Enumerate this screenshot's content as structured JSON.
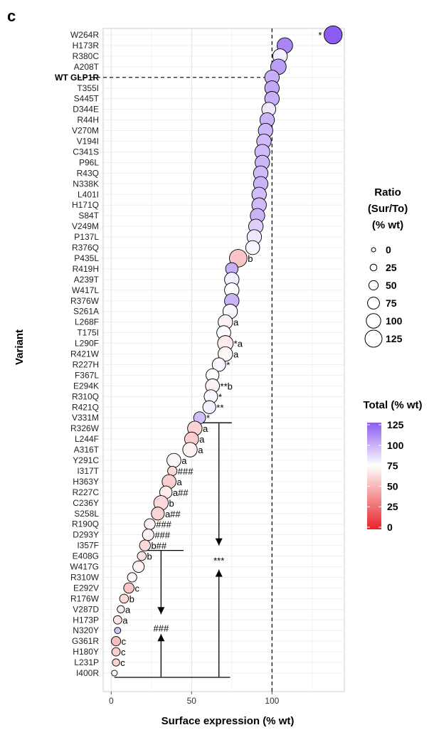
{
  "panel_label": "c",
  "chart_data": {
    "type": "scatter",
    "xlabel": "Surface expression (% wt)",
    "ylabel": "Variant",
    "xlim": [
      -5,
      145
    ],
    "x_ticks": [
      0,
      50,
      100
    ],
    "reference_x": 100,
    "reference_variant": "WT GLP1R",
    "grid": true,
    "legend_position": "right",
    "size_legend": {
      "title": [
        "Ratio",
        "(Sur/To)",
        "(% wt)"
      ],
      "values": [
        0,
        25,
        50,
        75,
        100,
        125
      ]
    },
    "color_legend": {
      "title": "Total (% wt)",
      "ticks": [
        125,
        100,
        75,
        50,
        25,
        0
      ],
      "low_color": "#e8232a",
      "mid_color": "#ffffff",
      "high_color": "#8c5cf0",
      "midpoint": 75
    },
    "points": [
      {
        "variant": "W264R",
        "x": 138,
        "ratio": 135,
        "total": 130,
        "label": "*",
        "label_side": "left"
      },
      {
        "variant": "H173R",
        "x": 108,
        "ratio": 110,
        "total": 112
      },
      {
        "variant": "R380C",
        "x": 105,
        "ratio": 100,
        "total": 80
      },
      {
        "variant": "A208T",
        "x": 104,
        "ratio": 110,
        "total": 105
      },
      {
        "variant": "WT GLP1R",
        "x": 100,
        "ratio": 100,
        "total": 100
      },
      {
        "variant": "T355I",
        "x": 100,
        "ratio": 100,
        "total": 102
      },
      {
        "variant": "S445T",
        "x": 100,
        "ratio": 100,
        "total": 100
      },
      {
        "variant": "D344E",
        "x": 98,
        "ratio": 95,
        "total": 82
      },
      {
        "variant": "R44H",
        "x": 97,
        "ratio": 100,
        "total": 98
      },
      {
        "variant": "V270M",
        "x": 96,
        "ratio": 100,
        "total": 97
      },
      {
        "variant": "V194I",
        "x": 95,
        "ratio": 100,
        "total": 96
      },
      {
        "variant": "C341S",
        "x": 94,
        "ratio": 105,
        "total": 96
      },
      {
        "variant": "P96L",
        "x": 94,
        "ratio": 100,
        "total": 97
      },
      {
        "variant": "R43Q",
        "x": 93,
        "ratio": 100,
        "total": 96
      },
      {
        "variant": "N338K",
        "x": 93,
        "ratio": 100,
        "total": 98
      },
      {
        "variant": "L401I",
        "x": 92,
        "ratio": 100,
        "total": 95
      },
      {
        "variant": "H171Q",
        "x": 92,
        "ratio": 100,
        "total": 96
      },
      {
        "variant": "S84T",
        "x": 91,
        "ratio": 100,
        "total": 98
      },
      {
        "variant": "V249M",
        "x": 90,
        "ratio": 100,
        "total": 90
      },
      {
        "variant": "P137L",
        "x": 89,
        "ratio": 100,
        "total": 82
      },
      {
        "variant": "R376Q",
        "x": 88,
        "ratio": 95,
        "total": 78
      },
      {
        "variant": "P435L",
        "x": 79,
        "ratio": 130,
        "total": 55,
        "label": "b"
      },
      {
        "variant": "R419H",
        "x": 75,
        "ratio": 80,
        "total": 100
      },
      {
        "variant": "A239T",
        "x": 75,
        "ratio": 100,
        "total": 80
      },
      {
        "variant": "W417L",
        "x": 75,
        "ratio": 100,
        "total": 76
      },
      {
        "variant": "R376W",
        "x": 75,
        "ratio": 100,
        "total": 98
      },
      {
        "variant": "S261A",
        "x": 74,
        "ratio": 100,
        "total": 78
      },
      {
        "variant": "L268F",
        "x": 71,
        "ratio": 100,
        "total": 70,
        "label": "a"
      },
      {
        "variant": "T175I",
        "x": 70,
        "ratio": 95,
        "total": 76
      },
      {
        "variant": "L290F",
        "x": 71,
        "ratio": 110,
        "total": 68,
        "label": "*a"
      },
      {
        "variant": "R421W",
        "x": 71,
        "ratio": 100,
        "total": 72,
        "label": "a"
      },
      {
        "variant": "R227H",
        "x": 67,
        "ratio": 90,
        "total": 78,
        "label": "*"
      },
      {
        "variant": "F367L",
        "x": 63,
        "ratio": 85,
        "total": 76
      },
      {
        "variant": "E294K",
        "x": 63,
        "ratio": 95,
        "total": 70,
        "label": "**b"
      },
      {
        "variant": "R310Q",
        "x": 62,
        "ratio": 90,
        "total": 77,
        "label": "*"
      },
      {
        "variant": "R421Q",
        "x": 61,
        "ratio": 85,
        "total": 80,
        "label": "**"
      },
      {
        "variant": "V331M",
        "x": 55,
        "ratio": 75,
        "total": 95,
        "label": "*"
      },
      {
        "variant": "R326W",
        "x": 52,
        "ratio": 100,
        "total": 60,
        "label": "a"
      },
      {
        "variant": "L244F",
        "x": 50,
        "ratio": 95,
        "total": 58,
        "label": "a"
      },
      {
        "variant": "A316T",
        "x": 49,
        "ratio": 100,
        "total": 70,
        "label": "a"
      },
      {
        "variant": "Y291C",
        "x": 39,
        "ratio": 95,
        "total": 72,
        "label": "a"
      },
      {
        "variant": "I317T",
        "x": 38,
        "ratio": 50,
        "total": 62,
        "label": "###"
      },
      {
        "variant": "H363Y",
        "x": 36,
        "ratio": 95,
        "total": 58,
        "label": "a"
      },
      {
        "variant": "R227C",
        "x": 34,
        "ratio": 80,
        "total": 68,
        "label": "a##"
      },
      {
        "variant": "C236Y",
        "x": 31,
        "ratio": 100,
        "total": 62,
        "label": "b"
      },
      {
        "variant": "S258L",
        "x": 29,
        "ratio": 85,
        "total": 60,
        "label": "a##"
      },
      {
        "variant": "R190Q",
        "x": 24,
        "ratio": 65,
        "total": 70,
        "label": "###"
      },
      {
        "variant": "D293Y",
        "x": 23,
        "ratio": 70,
        "total": 72,
        "label": "###"
      },
      {
        "variant": "I357F",
        "x": 21,
        "ratio": 65,
        "total": 62,
        "label": "b##"
      },
      {
        "variant": "E408G",
        "x": 19,
        "ratio": 45,
        "total": 65,
        "label": "b"
      },
      {
        "variant": "W417G",
        "x": 17,
        "ratio": 70,
        "total": 70
      },
      {
        "variant": "R310W",
        "x": 13,
        "ratio": 50,
        "total": 72
      },
      {
        "variant": "E292V",
        "x": 11,
        "ratio": 60,
        "total": 55,
        "label": "c"
      },
      {
        "variant": "R176W",
        "x": 8,
        "ratio": 45,
        "total": 63,
        "label": "b"
      },
      {
        "variant": "V287D",
        "x": 6,
        "ratio": 30,
        "total": 70,
        "label": "a"
      },
      {
        "variant": "H173P",
        "x": 4,
        "ratio": 40,
        "total": 66,
        "label": "a"
      },
      {
        "variant": "N320Y",
        "x": 4,
        "ratio": 20,
        "total": 95
      },
      {
        "variant": "G361R",
        "x": 3,
        "ratio": 50,
        "total": 52,
        "label": "c"
      },
      {
        "variant": "H180Y",
        "x": 3,
        "ratio": 40,
        "total": 58,
        "label": "c"
      },
      {
        "variant": "L231P",
        "x": 3,
        "ratio": 30,
        "total": 60,
        "label": "c"
      },
      {
        "variant": "I400R",
        "x": 2,
        "ratio": 15,
        "total": 72
      }
    ],
    "annotations": {
      "upper_significance": "***",
      "lower_significance": "###"
    }
  }
}
